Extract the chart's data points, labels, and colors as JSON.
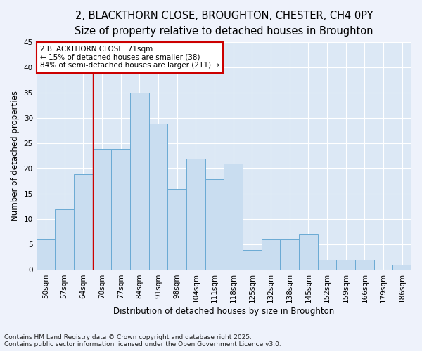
{
  "title_line1": "2, BLACKTHORN CLOSE, BROUGHTON, CHESTER, CH4 0PY",
  "title_line2": "Size of property relative to detached houses in Broughton",
  "xlabel": "Distribution of detached houses by size in Broughton",
  "ylabel": "Number of detached properties",
  "categories": [
    "50sqm",
    "57sqm",
    "64sqm",
    "70sqm",
    "77sqm",
    "84sqm",
    "91sqm",
    "98sqm",
    "104sqm",
    "111sqm",
    "118sqm",
    "125sqm",
    "132sqm",
    "138sqm",
    "145sqm",
    "152sqm",
    "159sqm",
    "166sqm",
    "179sqm",
    "186sqm"
  ],
  "values": [
    6,
    12,
    19,
    24,
    24,
    35,
    29,
    16,
    22,
    18,
    21,
    4,
    6,
    6,
    7,
    2,
    2,
    2,
    0,
    1
  ],
  "bar_color": "#c9ddf0",
  "bar_edge_color": "#6aaad4",
  "ylim": [
    0,
    45
  ],
  "yticks": [
    0,
    5,
    10,
    15,
    20,
    25,
    30,
    35,
    40,
    45
  ],
  "vline_x_index": 3,
  "vline_color": "#cc0000",
  "annotation_text": "2 BLACKTHORN CLOSE: 71sqm\n← 15% of detached houses are smaller (38)\n84% of semi-detached houses are larger (211) →",
  "annotation_box_color": "#ffffff",
  "annotation_border_color": "#cc0000",
  "footer_line1": "Contains HM Land Registry data © Crown copyright and database right 2025.",
  "footer_line2": "Contains public sector information licensed under the Open Government Licence v3.0.",
  "bg_color": "#eef2fb",
  "plot_bg_color": "#dce8f5",
  "grid_color": "#ffffff",
  "title_fontsize": 10.5,
  "subtitle_fontsize": 9.5,
  "axis_label_fontsize": 8.5,
  "tick_fontsize": 7.5,
  "annotation_fontsize": 7.5,
  "footer_fontsize": 6.5
}
